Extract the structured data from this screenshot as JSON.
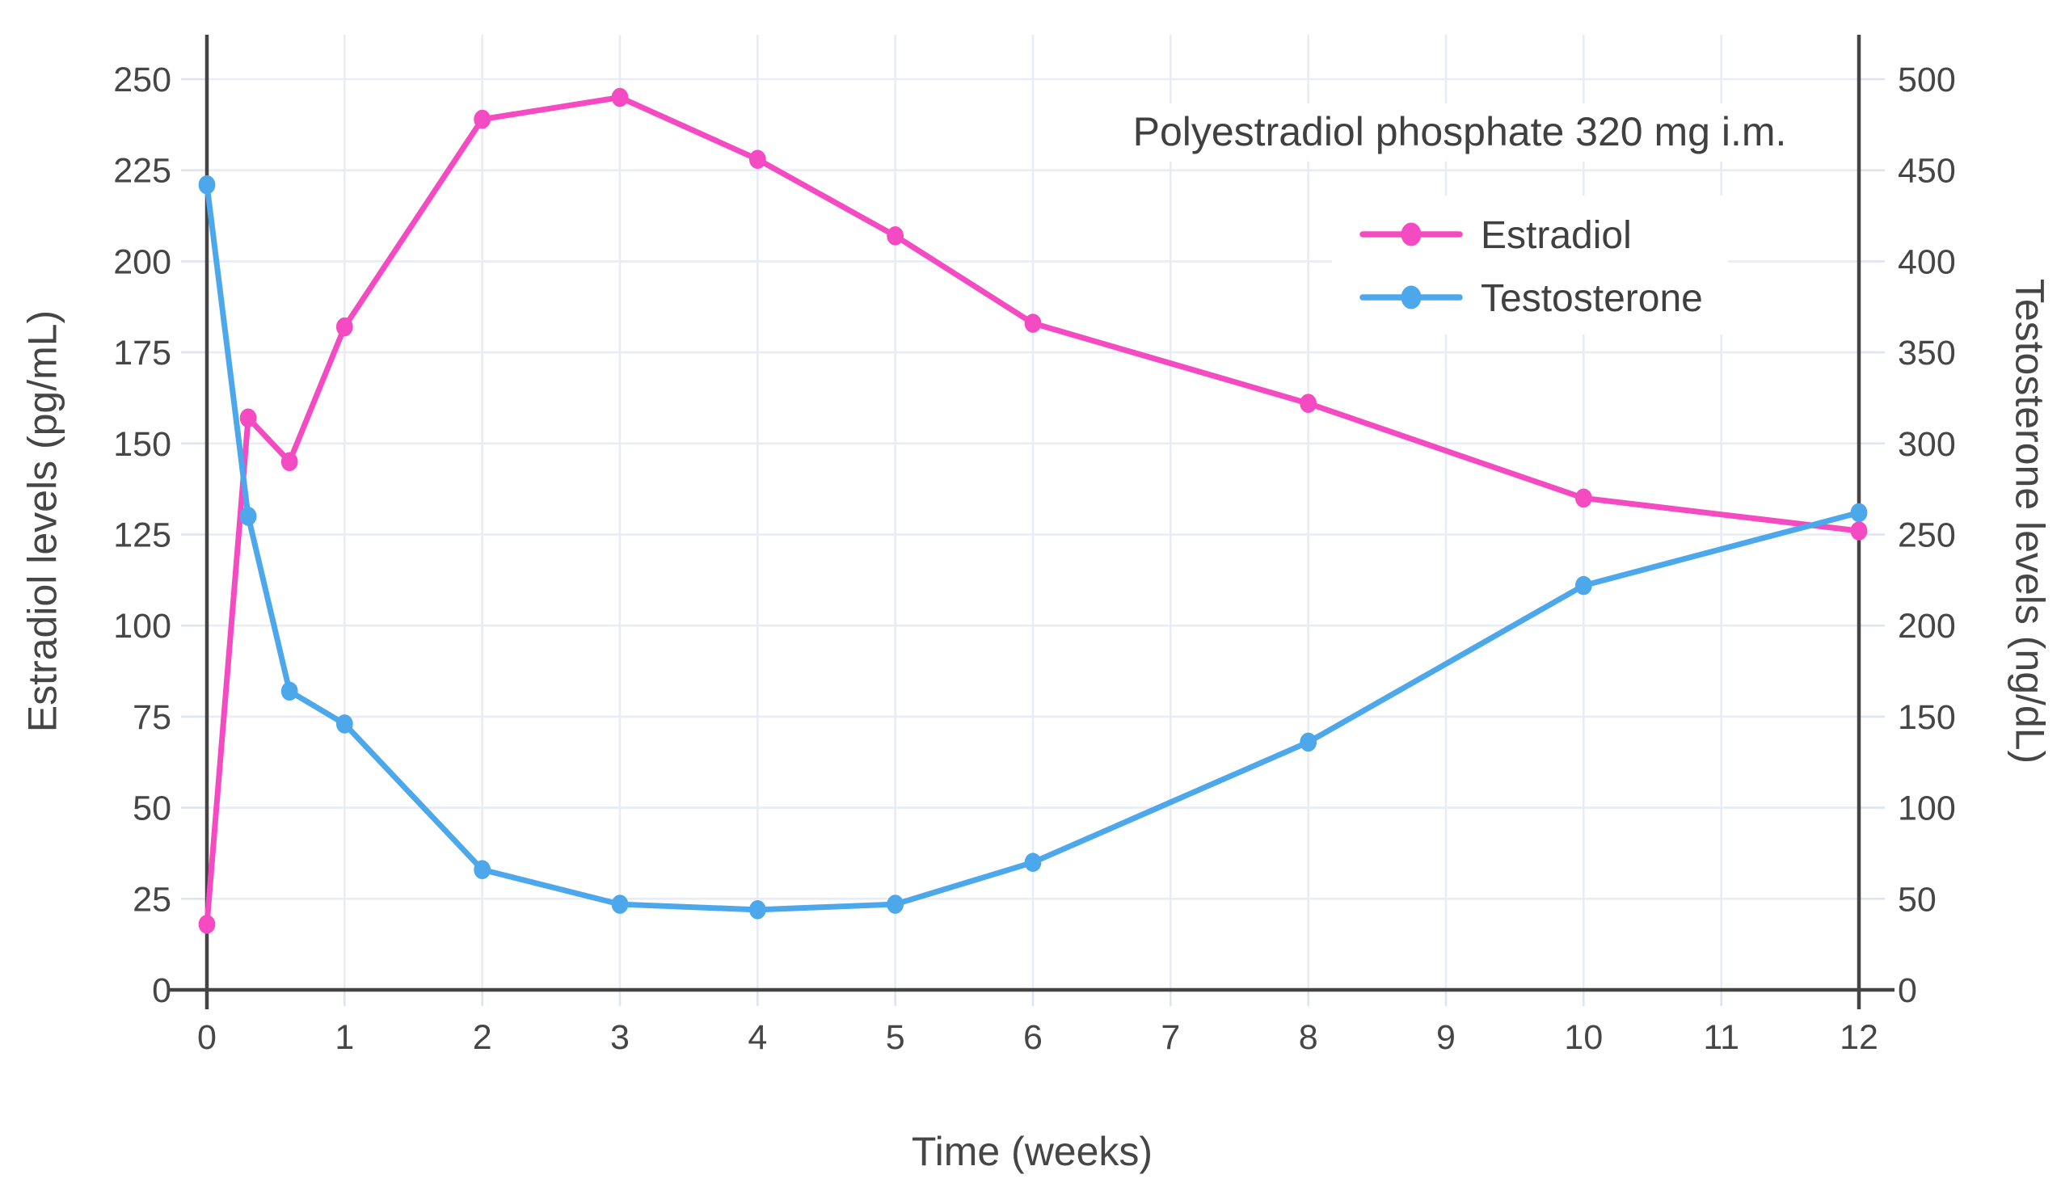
{
  "annotation": {
    "text": "Polyestradiol phosphate 320 mg i.m."
  },
  "legend": {
    "items": [
      {
        "label": "Estradiol",
        "color": "#F44BC3"
      },
      {
        "label": "Testosterone",
        "color": "#4DA7EB"
      }
    ],
    "position": "top-right-inside",
    "background": "#FFFFFF"
  },
  "axes": {
    "x": {
      "title": "Time (weeks)",
      "ticks": [
        0,
        1,
        2,
        3,
        4,
        5,
        6,
        7,
        8,
        9,
        10,
        11,
        12
      ],
      "range": [
        0,
        12
      ]
    },
    "y_left": {
      "title": "Estradiol levels (pg/mL)",
      "ticks": [
        0,
        25,
        50,
        75,
        100,
        125,
        150,
        175,
        200,
        225,
        250
      ],
      "range": [
        0,
        262
      ]
    },
    "y_right": {
      "title": "Testosterone levels (ng/dL)",
      "ticks": [
        0,
        50,
        100,
        150,
        200,
        250,
        300,
        350,
        400,
        450,
        500
      ],
      "range": [
        0,
        524
      ]
    }
  },
  "chart_data": {
    "type": "line",
    "title": "Polyestradiol phosphate 320 mg i.m.",
    "xlabel": "Time (weeks)",
    "ylabel_left": "Estradiol levels (pg/mL)",
    "ylabel_right": "Testosterone levels (ng/dL)",
    "x_range": [
      0,
      12
    ],
    "y_left_range": [
      0,
      262
    ],
    "y_right_range": [
      0,
      524
    ],
    "grid": true,
    "legend_position": "top-right-inside",
    "x": [
      0,
      0.3,
      0.6,
      1,
      2,
      3,
      4,
      5,
      6,
      8,
      10,
      12
    ],
    "series": [
      {
        "name": "Estradiol",
        "yaxis": "left",
        "unit": "pg/mL",
        "color": "#F44BC3",
        "values": [
          18,
          157,
          145,
          182,
          239,
          245,
          228,
          207,
          183,
          161,
          135,
          126
        ]
      },
      {
        "name": "Testosterone",
        "yaxis": "right",
        "unit": "ng/dL",
        "color": "#4DA7EB",
        "values": [
          442,
          260,
          164,
          146,
          66,
          47,
          44,
          47,
          70,
          136,
          222,
          262
        ]
      }
    ]
  },
  "colors": {
    "estradiol": "#F44BC3",
    "testosterone": "#4DA7EB",
    "axis": "#444444",
    "text": "#464646",
    "grid": "#E9ECF5",
    "tick": "#DFE4F0",
    "background": "#FFFFFF"
  }
}
